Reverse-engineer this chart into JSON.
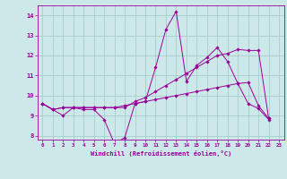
{
  "xlabel": "Windchill (Refroidissement éolien,°C)",
  "bg_color": "#cce8e8",
  "grid_color": "#aacccc",
  "line_color": "#990099",
  "xlim": [
    -0.5,
    23.5
  ],
  "ylim": [
    7.8,
    14.5
  ],
  "xticks": [
    0,
    1,
    2,
    3,
    4,
    5,
    6,
    7,
    8,
    9,
    10,
    11,
    12,
    13,
    14,
    15,
    16,
    17,
    18,
    19,
    20,
    21,
    22,
    23
  ],
  "yticks": [
    8,
    9,
    10,
    11,
    12,
    13,
    14
  ],
  "series": [
    [
      9.6,
      9.3,
      9.0,
      9.4,
      9.3,
      9.3,
      8.8,
      7.6,
      7.9,
      9.6,
      9.7,
      11.4,
      13.3,
      14.2,
      10.7,
      11.5,
      11.9,
      12.4,
      11.7,
      10.6,
      9.6,
      9.35,
      8.8
    ],
    [
      9.6,
      9.3,
      9.4,
      9.4,
      9.4,
      9.4,
      9.4,
      9.4,
      9.4,
      9.7,
      9.9,
      10.2,
      10.5,
      10.8,
      11.1,
      11.4,
      11.7,
      12.0,
      12.1,
      12.3,
      12.25,
      12.25,
      8.85
    ],
    [
      9.6,
      9.3,
      9.4,
      9.4,
      9.4,
      9.4,
      9.4,
      9.4,
      9.5,
      9.6,
      9.7,
      9.8,
      9.9,
      10.0,
      10.1,
      10.2,
      10.3,
      10.4,
      10.5,
      10.6,
      10.65,
      9.5,
      8.85
    ]
  ]
}
